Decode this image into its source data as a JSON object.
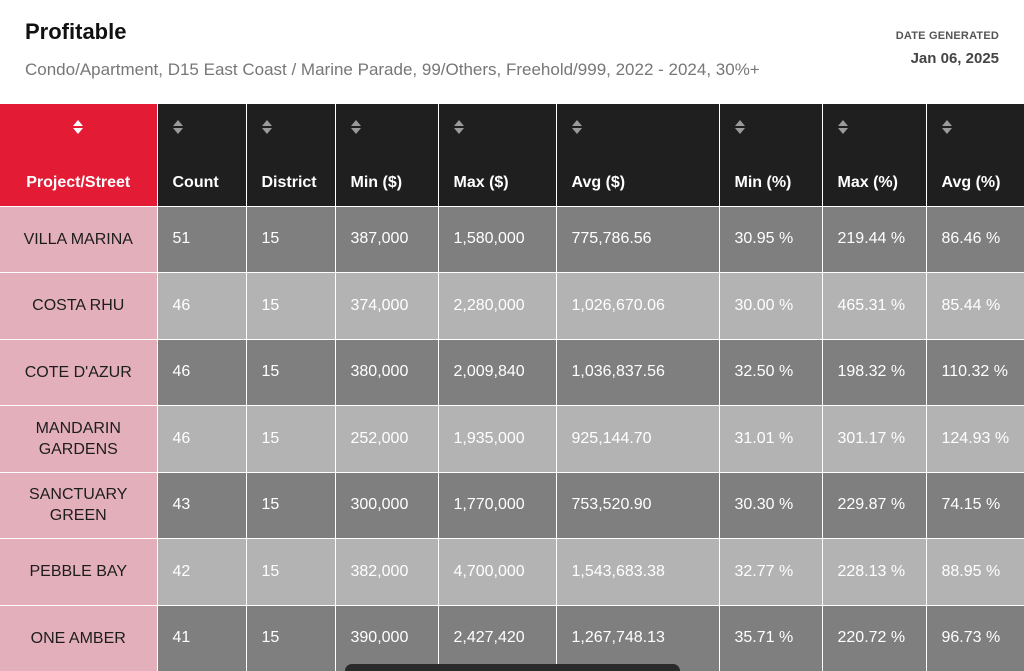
{
  "report": {
    "title": "Profitable",
    "subtitle": "Condo/Apartment, D15 East Coast / Marine Parade, 99/Others, Freehold/999, 2022 - 2024, 30%+",
    "date_label": "DATE GENERATED",
    "date_value": "Jan 06, 2025"
  },
  "table": {
    "columns": [
      "Project/Street",
      "Count",
      "District",
      "Min ($)",
      "Max ($)",
      "Avg ($)",
      "Min (%)",
      "Max (%)",
      "Avg (%)"
    ],
    "active_sort_column": "Project/Street",
    "rows": [
      [
        "VILLA MARINA",
        "51",
        "15",
        "387,000",
        "1,580,000",
        "775,786.56",
        "30.95 %",
        "219.44 %",
        "86.46 %"
      ],
      [
        "COSTA RHU",
        "46",
        "15",
        "374,000",
        "2,280,000",
        "1,026,670.06",
        "30.00 %",
        "465.31 %",
        "85.44 %"
      ],
      [
        "COTE D'AZUR",
        "46",
        "15",
        "380,000",
        "2,009,840",
        "1,036,837.56",
        "32.50 %",
        "198.32 %",
        "110.32 %"
      ],
      [
        "MANDARIN GARDENS",
        "46",
        "15",
        "252,000",
        "1,935,000",
        "925,144.70",
        "31.01 %",
        "301.17 %",
        "124.93 %"
      ],
      [
        "SANCTUARY GREEN",
        "43",
        "15",
        "300,000",
        "1,770,000",
        "753,520.90",
        "30.30 %",
        "229.87 %",
        "74.15 %"
      ],
      [
        "PEBBLE BAY",
        "42",
        "15",
        "382,000",
        "4,700,000",
        "1,543,683.38",
        "32.77 %",
        "228.13 %",
        "88.95 %"
      ],
      [
        "ONE AMBER",
        "41",
        "15",
        "390,000",
        "2,427,420",
        "1,267,748.13",
        "35.71 %",
        "220.72 %",
        "96.73 %"
      ]
    ]
  },
  "icons": {
    "sort": "sort-icon"
  },
  "colors": {
    "accent": "#e31b35",
    "header_bg": "#1f1f1f",
    "name_cell_bg": "#e2afbb",
    "row_dark": "#7f7f7f",
    "row_light": "#b3b3b3"
  }
}
